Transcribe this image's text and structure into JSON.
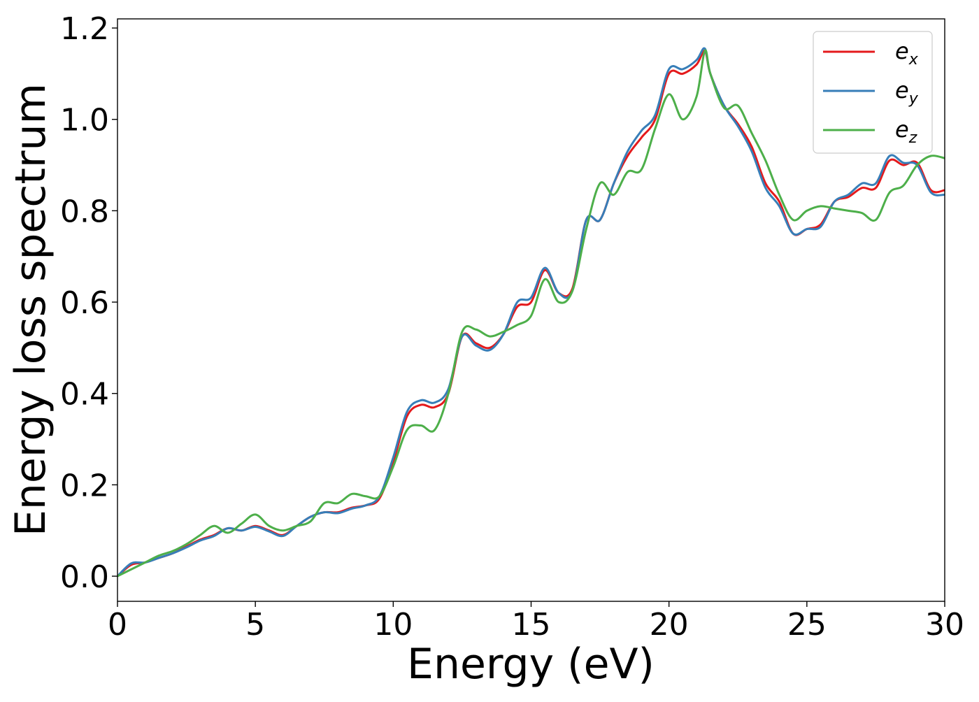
{
  "chart_data": {
    "type": "line",
    "xlabel": "Energy (eV)",
    "ylabel": "Energy loss spectrum",
    "xlim": [
      0,
      30
    ],
    "ylim": [
      -0.055,
      1.22
    ],
    "xticks": [
      0,
      5,
      10,
      15,
      20,
      25,
      30
    ],
    "xtick_labels": [
      "0",
      "5",
      "10",
      "15",
      "20",
      "25",
      "30"
    ],
    "yticks": [
      0.0,
      0.2,
      0.4,
      0.6,
      0.8,
      1.0,
      1.2
    ],
    "ytick_labels": [
      "0.0",
      "0.2",
      "0.4",
      "0.6",
      "0.8",
      "1.0",
      "1.2"
    ],
    "grid": false,
    "legend_position": "top-right",
    "x": [
      0,
      0.5,
      1,
      1.5,
      2,
      2.5,
      3,
      3.5,
      4,
      4.5,
      5,
      5.5,
      6,
      6.5,
      7,
      7.5,
      8,
      8.5,
      9,
      9.5,
      10,
      10.5,
      11,
      11.5,
      12,
      12.5,
      13,
      13.5,
      14,
      14.5,
      15,
      15.5,
      16,
      16.5,
      17,
      17.5,
      18,
      18.5,
      19,
      19.5,
      20,
      20.5,
      21,
      21.3,
      21.5,
      22,
      22.5,
      23,
      23.5,
      24,
      24.5,
      25,
      25.5,
      26,
      26.5,
      27,
      27.5,
      28,
      28.5,
      29,
      29.5,
      30
    ],
    "series": [
      {
        "name": "e",
        "subscript": "x",
        "color": "#e41a1c",
        "values": [
          0.0,
          0.025,
          0.03,
          0.04,
          0.05,
          0.065,
          0.08,
          0.09,
          0.105,
          0.1,
          0.11,
          0.1,
          0.09,
          0.11,
          0.13,
          0.14,
          0.14,
          0.15,
          0.155,
          0.17,
          0.25,
          0.35,
          0.375,
          0.37,
          0.4,
          0.525,
          0.51,
          0.5,
          0.53,
          0.59,
          0.6,
          0.67,
          0.62,
          0.63,
          0.78,
          0.78,
          0.86,
          0.92,
          0.96,
          1.0,
          1.1,
          1.1,
          1.12,
          1.15,
          1.1,
          1.03,
          0.99,
          0.94,
          0.86,
          0.82,
          0.75,
          0.76,
          0.77,
          0.82,
          0.83,
          0.85,
          0.85,
          0.91,
          0.9,
          0.905,
          0.845,
          0.845
        ]
      },
      {
        "name": "e",
        "subscript": "y",
        "color": "#377eb8",
        "values": [
          0.0,
          0.028,
          0.03,
          0.04,
          0.05,
          0.063,
          0.078,
          0.088,
          0.105,
          0.1,
          0.108,
          0.098,
          0.088,
          0.11,
          0.13,
          0.14,
          0.138,
          0.148,
          0.155,
          0.175,
          0.26,
          0.36,
          0.385,
          0.38,
          0.41,
          0.525,
          0.505,
          0.495,
          0.53,
          0.6,
          0.61,
          0.675,
          0.62,
          0.625,
          0.78,
          0.78,
          0.86,
          0.93,
          0.975,
          1.01,
          1.11,
          1.11,
          1.13,
          1.155,
          1.1,
          1.03,
          0.985,
          0.93,
          0.85,
          0.81,
          0.75,
          0.76,
          0.765,
          0.82,
          0.835,
          0.86,
          0.86,
          0.92,
          0.905,
          0.9,
          0.84,
          0.835
        ]
      },
      {
        "name": "e",
        "subscript": "z",
        "color": "#4daf4a",
        "values": [
          0.0,
          0.015,
          0.03,
          0.045,
          0.055,
          0.07,
          0.09,
          0.11,
          0.095,
          0.115,
          0.135,
          0.11,
          0.1,
          0.11,
          0.12,
          0.16,
          0.16,
          0.18,
          0.175,
          0.175,
          0.24,
          0.32,
          0.33,
          0.32,
          0.4,
          0.535,
          0.54,
          0.525,
          0.535,
          0.55,
          0.57,
          0.65,
          0.6,
          0.625,
          0.76,
          0.86,
          0.835,
          0.885,
          0.89,
          0.98,
          1.055,
          1.0,
          1.05,
          1.15,
          1.1,
          1.025,
          1.03,
          0.97,
          0.91,
          0.835,
          0.78,
          0.8,
          0.81,
          0.805,
          0.8,
          0.795,
          0.78,
          0.84,
          0.855,
          0.9,
          0.92,
          0.915
        ]
      }
    ]
  }
}
